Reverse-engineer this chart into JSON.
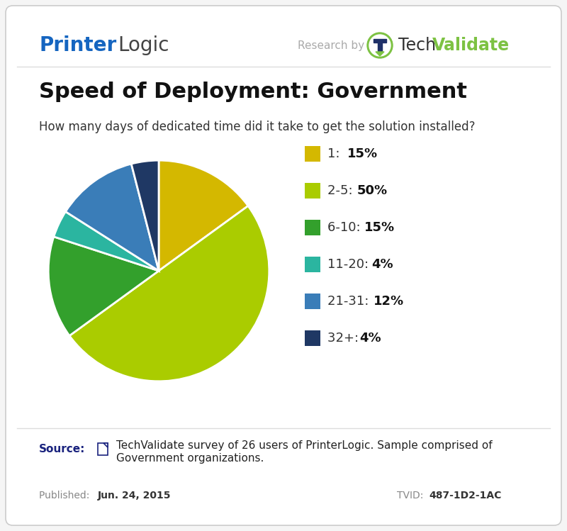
{
  "title": "Speed of Deployment: Government",
  "question": "How many days of dedicated time did it take to get the solution installed?",
  "slices": [
    15,
    50,
    15,
    4,
    12,
    4
  ],
  "labels": [
    "1",
    "2-5",
    "6-10",
    "11-20",
    "21-31",
    "32+"
  ],
  "percentages": [
    "15%",
    "50%",
    "15%",
    "4%",
    "12%",
    "4%"
  ],
  "colors": [
    "#D4B800",
    "#AACC00",
    "#33A02C",
    "#2BB5A0",
    "#3A7DB8",
    "#1F3864"
  ],
  "source_text_line1": "TechValidate survey of 26 users of PrinterLogic. Sample comprised of",
  "source_text_line2": "Government organizations.",
  "published": "Jun. 24, 2015",
  "tvid": "487-1D2-1AC",
  "printer_logic_blue": "#1565C0",
  "techvalidate_green": "#7DC243",
  "techvalidate_navy": "#1F3068",
  "source_blue": "#1A237E",
  "background_color": "#FFFFFF",
  "startangle": 90
}
